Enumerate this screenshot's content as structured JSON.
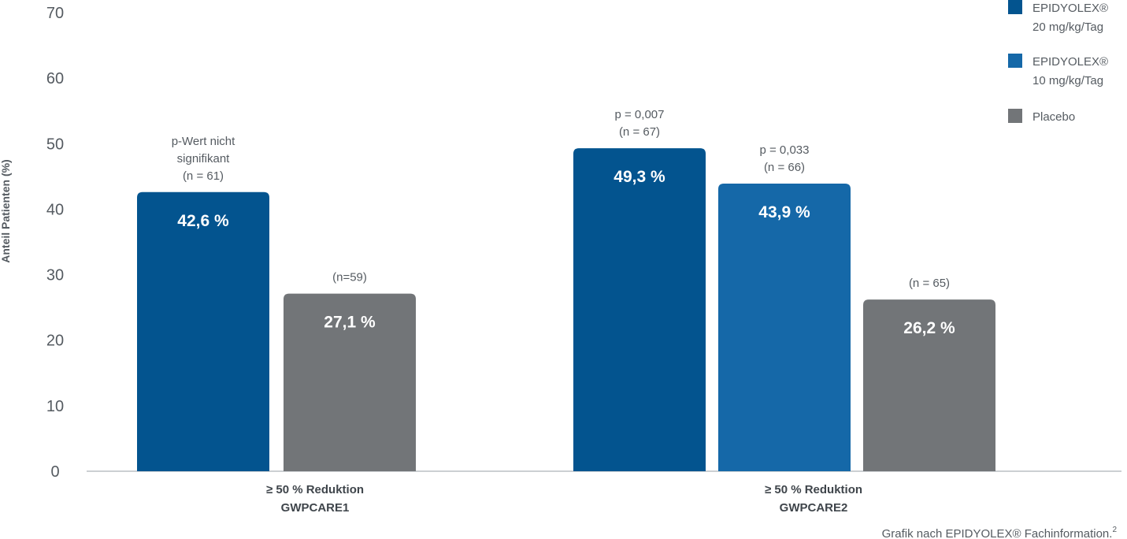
{
  "chart_data": {
    "type": "bar",
    "ylabel": "Anteil Patienten (%)",
    "ylim": [
      0,
      70
    ],
    "yticks": [
      0,
      10,
      20,
      30,
      40,
      50,
      60,
      70
    ],
    "grid": false,
    "legend_position": "top-right",
    "series_info": [
      {
        "name": "EPIDYOLEX®",
        "sub": "20 mg/kg/Tag",
        "color": "#03548f"
      },
      {
        "name": "EPIDYOLEX®",
        "sub": "10 mg/kg/Tag",
        "color": "#1568a8"
      },
      {
        "name": "Placebo",
        "sub": "",
        "color": "#727578"
      }
    ],
    "groups": [
      {
        "label_line1": "≥ 50 % Reduktion",
        "label_line2": "GWPCARE1",
        "bars": [
          {
            "series": 0,
            "value": 42.6,
            "value_label": "42,6 %",
            "annotation": [
              "p-Wert nicht",
              "signifikant",
              "(n = 61)"
            ]
          },
          {
            "series": 2,
            "value": 27.1,
            "value_label": "27,1 %",
            "annotation": [
              "(n=59)"
            ]
          }
        ]
      },
      {
        "label_line1": "≥ 50 % Reduktion",
        "label_line2": "GWPCARE2",
        "bars": [
          {
            "series": 0,
            "value": 49.3,
            "value_label": "49,3 %",
            "annotation": [
              "p = 0,007",
              "(n = 67)"
            ]
          },
          {
            "series": 1,
            "value": 43.9,
            "value_label": "43,9 %",
            "annotation": [
              "p = 0,033",
              "(n = 66)"
            ]
          },
          {
            "series": 2,
            "value": 26.2,
            "value_label": "26,2 %",
            "annotation": [
              "(n = 65)"
            ]
          }
        ]
      }
    ],
    "source_note": "Grafik nach EPIDYOLEX® Fachinformation.",
    "source_note_sup": "2"
  }
}
